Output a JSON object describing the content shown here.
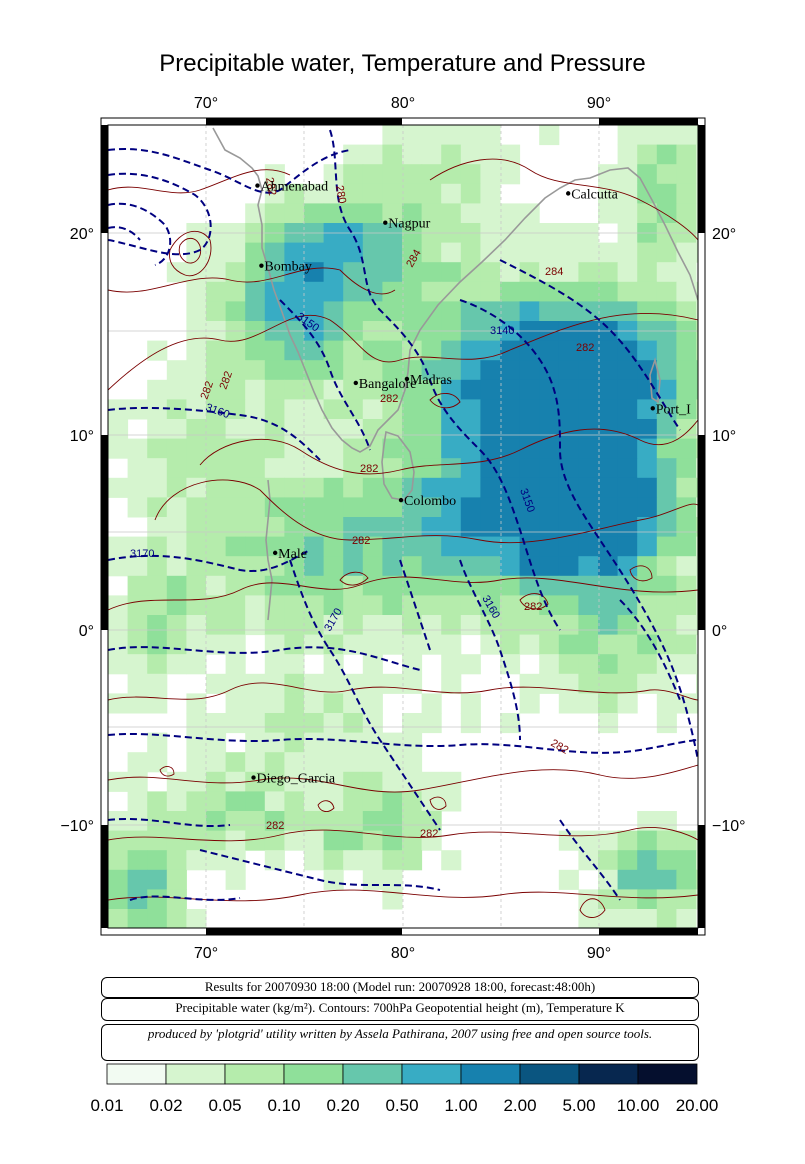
{
  "title": "Precipitable water, Temperature and Pressure",
  "axes": {
    "lon_labels": [
      "70°",
      "80°",
      "90°"
    ],
    "lat_labels": [
      "20°",
      "10°",
      "0°",
      "−10°"
    ]
  },
  "cities": [
    {
      "name": "Ahmenabad",
      "lon": 72.6,
      "lat": 23.0
    },
    {
      "name": "Nagpur",
      "lon": 79.1,
      "lat": 21.1
    },
    {
      "name": "Calcutta",
      "lon": 88.4,
      "lat": 22.6
    },
    {
      "name": "Bombay",
      "lon": 72.8,
      "lat": 18.9
    },
    {
      "name": "Madras",
      "lon": 80.2,
      "lat": 13.1
    },
    {
      "name": "Bangalore",
      "lon": 77.6,
      "lat": 12.9
    },
    {
      "name": "Port_Blair",
      "display": "Port_I",
      "lon": 92.7,
      "lat": 11.6
    },
    {
      "name": "Colombo",
      "lon": 79.9,
      "lat": 6.9
    },
    {
      "name": "Male",
      "lon": 73.5,
      "lat": 4.2
    },
    {
      "name": "Diego_Garcia",
      "lon": 72.4,
      "lat": -7.3
    }
  ],
  "contour_labels": {
    "height": [
      "3150",
      "3140",
      "3160",
      "3150",
      "3170",
      "3170",
      "3160"
    ],
    "temperature": [
      "280",
      "282",
      "284",
      "284",
      "282",
      "282",
      "282",
      "282",
      "282",
      "282",
      "282",
      "282",
      "282",
      "282"
    ]
  },
  "info": {
    "line1": "Results for 20070930 18:00 (Model run: 20070928 18:00, forecast:48:00h)",
    "line2": "Precipitable water (kg/m²).  Contours: 700hPa Geopotential height (m), Temperature K",
    "line3": "produced by 'plotgrid' utility written by Assela Pathirana, 2007 using free and open source tools."
  },
  "colorbar": {
    "labels": [
      "0.01",
      "0.02",
      "0.05",
      "0.10",
      "0.20",
      "0.50",
      "1.00",
      "2.00",
      "5.00",
      "10.00",
      "20.00"
    ],
    "colors": [
      "#f2fbf2",
      "#d6f5cf",
      "#b5ecac",
      "#8fe09a",
      "#66c7ac",
      "#38acc4",
      "#1781ae",
      "#0a5580",
      "#07274f",
      "#050f2e",
      "#02040f"
    ]
  },
  "colors": {
    "height_contour": "#000080",
    "temp_contour": "#7a0000",
    "coast": "#999999",
    "grid": "#c8c8c8"
  }
}
